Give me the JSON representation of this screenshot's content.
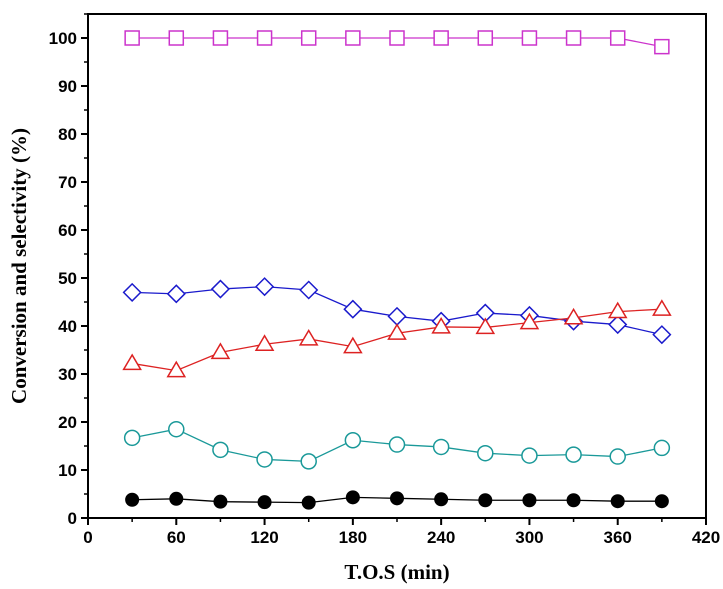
{
  "chart_data": {
    "type": "line",
    "title": "",
    "xlabel": "T.O.S (min)",
    "ylabel": "Conversion and selectivity (%)",
    "xlim": [
      0,
      420
    ],
    "ylim": [
      0,
      105
    ],
    "x_ticks": [
      0,
      60,
      120,
      180,
      240,
      300,
      360,
      420
    ],
    "y_ticks": [
      0,
      10,
      20,
      30,
      40,
      50,
      60,
      70,
      80,
      90,
      100
    ],
    "grid": false,
    "legend": "none",
    "x": [
      30,
      60,
      90,
      120,
      150,
      180,
      210,
      240,
      270,
      300,
      330,
      360,
      390
    ],
    "series": [
      {
        "marker": "square-open",
        "color": "#cc33cc",
        "values": [
          100,
          100,
          100,
          100,
          100,
          100,
          100,
          100,
          100,
          100,
          100,
          100,
          98.2
        ]
      },
      {
        "marker": "diamond-open",
        "color": "#1a1acc",
        "values": [
          47.0,
          46.7,
          47.7,
          48.2,
          47.5,
          43.5,
          42.0,
          41.0,
          42.7,
          42.2,
          41.0,
          40.3,
          38.2
        ]
      },
      {
        "marker": "triangle-open",
        "color": "#dd2222",
        "values": [
          32.2,
          30.7,
          34.5,
          36.2,
          37.3,
          35.7,
          38.5,
          39.8,
          39.7,
          40.7,
          41.7,
          43.0,
          43.5
        ]
      },
      {
        "marker": "circle-open",
        "color": "#1a9999",
        "values": [
          16.7,
          18.5,
          14.2,
          12.2,
          11.8,
          16.2,
          15.3,
          14.8,
          13.5,
          13.0,
          13.2,
          12.8,
          14.6
        ]
      },
      {
        "marker": "circle-filled",
        "color": "#000000",
        "values": [
          3.8,
          4.0,
          3.4,
          3.3,
          3.2,
          4.3,
          4.1,
          3.9,
          3.7,
          3.7,
          3.7,
          3.5,
          3.5
        ]
      }
    ]
  }
}
